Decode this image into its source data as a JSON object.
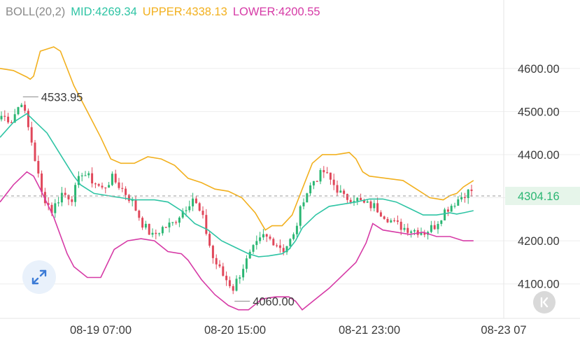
{
  "legend": {
    "label": "BOLL(20,2)",
    "mid": "MID:4269.34",
    "upper": "UPPER:4338.13",
    "lower": "LOWER:4200.55"
  },
  "colors": {
    "mid": "#2ec4a4",
    "upper": "#f2b01e",
    "lower": "#d63aa6",
    "up": "#2bb673",
    "down": "#e0475a",
    "axis_text": "#3b3b3b",
    "grid": "#eeeeee",
    "price_tag_bg": "#e6f5ea",
    "price_tag_text": "#2bb673"
  },
  "icons": {
    "expand": "expand-arrows-icon",
    "back": "chevron-back-icon"
  },
  "chart_data": {
    "type": "candlestick",
    "y_ticks": [
      "4600.00",
      "4500.00",
      "4400.00",
      "4300.00",
      "4200.00",
      "4100.00"
    ],
    "y_tick_values": [
      4600,
      4500,
      4400,
      4300,
      4200,
      4100
    ],
    "ylim": [
      4020,
      4710
    ],
    "x_ticks": [
      "08-19 07:00",
      "08-20 15:00",
      "08-21 23:00",
      "08-23 07"
    ],
    "x_tick_index": [
      30,
      70,
      110,
      150
    ],
    "x_count": 150,
    "current_price": 4304.16,
    "current_price_label": "4304.16",
    "high_marker": {
      "label": "4533.95",
      "index": 6,
      "value": 4533.95
    },
    "low_marker": {
      "label": "4060.00",
      "index": 69,
      "value": 4060.0
    },
    "series": {
      "upper": [
        [
          0,
          4600
        ],
        [
          4,
          4595
        ],
        [
          8,
          4580
        ],
        [
          9,
          4575
        ],
        [
          10,
          4582
        ],
        [
          12,
          4640
        ],
        [
          16,
          4650
        ],
        [
          18,
          4640
        ],
        [
          22,
          4560
        ],
        [
          26,
          4500
        ],
        [
          30,
          4440
        ],
        [
          33,
          4390
        ],
        [
          36,
          4380
        ],
        [
          40,
          4380
        ],
        [
          44,
          4395
        ],
        [
          48,
          4390
        ],
        [
          52,
          4375
        ],
        [
          56,
          4345
        ],
        [
          60,
          4335
        ],
        [
          64,
          4320
        ],
        [
          68,
          4315
        ],
        [
          72,
          4300
        ],
        [
          76,
          4265
        ],
        [
          79,
          4225
        ],
        [
          81,
          4235
        ],
        [
          84,
          4235
        ],
        [
          87,
          4260
        ],
        [
          90,
          4320
        ],
        [
          93,
          4380
        ],
        [
          96,
          4400
        ],
        [
          100,
          4400
        ],
        [
          104,
          4405
        ],
        [
          106,
          4390
        ],
        [
          108,
          4360
        ],
        [
          110,
          4350
        ],
        [
          115,
          4345
        ],
        [
          120,
          4340
        ],
        [
          124,
          4320
        ],
        [
          128,
          4300
        ],
        [
          132,
          4295
        ],
        [
          134,
          4305
        ],
        [
          136,
          4310
        ],
        [
          138,
          4325
        ],
        [
          141,
          4340
        ]
      ],
      "mid": [
        [
          0,
          4440
        ],
        [
          4,
          4475
        ],
        [
          8,
          4495
        ],
        [
          10,
          4480
        ],
        [
          14,
          4450
        ],
        [
          18,
          4400
        ],
        [
          22,
          4350
        ],
        [
          24,
          4330
        ],
        [
          28,
          4310
        ],
        [
          32,
          4305
        ],
        [
          36,
          4300
        ],
        [
          40,
          4295
        ],
        [
          46,
          4295
        ],
        [
          50,
          4290
        ],
        [
          54,
          4270
        ],
        [
          58,
          4240
        ],
        [
          62,
          4225
        ],
        [
          66,
          4200
        ],
        [
          70,
          4185
        ],
        [
          74,
          4170
        ],
        [
          77,
          4163
        ],
        [
          80,
          4165
        ],
        [
          84,
          4170
        ],
        [
          86,
          4180
        ],
        [
          88,
          4200
        ],
        [
          90,
          4230
        ],
        [
          94,
          4260
        ],
        [
          98,
          4280
        ],
        [
          102,
          4285
        ],
        [
          106,
          4290
        ],
        [
          110,
          4297
        ],
        [
          114,
          4297
        ],
        [
          118,
          4290
        ],
        [
          122,
          4275
        ],
        [
          126,
          4260
        ],
        [
          130,
          4260
        ],
        [
          134,
          4265
        ],
        [
          136,
          4262
        ],
        [
          138,
          4265
        ],
        [
          141,
          4270
        ]
      ],
      "lower": [
        [
          0,
          4290
        ],
        [
          4,
          4330
        ],
        [
          8,
          4360
        ],
        [
          10,
          4350
        ],
        [
          12,
          4320
        ],
        [
          16,
          4255
        ],
        [
          20,
          4170
        ],
        [
          22,
          4140
        ],
        [
          26,
          4115
        ],
        [
          30,
          4115
        ],
        [
          34,
          4180
        ],
        [
          38,
          4200
        ],
        [
          42,
          4205
        ],
        [
          46,
          4200
        ],
        [
          50,
          4175
        ],
        [
          54,
          4170
        ],
        [
          56,
          4155
        ],
        [
          60,
          4110
        ],
        [
          64,
          4075
        ],
        [
          68,
          4050
        ],
        [
          71,
          4040
        ],
        [
          74,
          4040
        ],
        [
          78,
          4065
        ],
        [
          82,
          4070
        ],
        [
          86,
          4070
        ],
        [
          88,
          4060
        ],
        [
          90,
          4040
        ],
        [
          94,
          4065
        ],
        [
          98,
          4090
        ],
        [
          102,
          4120
        ],
        [
          106,
          4150
        ],
        [
          109,
          4195
        ],
        [
          111,
          4240
        ],
        [
          114,
          4225
        ],
        [
          118,
          4220
        ],
        [
          122,
          4215
        ],
        [
          126,
          4220
        ],
        [
          130,
          4210
        ],
        [
          134,
          4210
        ],
        [
          138,
          4200
        ],
        [
          141,
          4200
        ]
      ]
    },
    "segments": [
      [
        0,
        4490
      ],
      [
        3,
        4480
      ],
      [
        6,
        4525
      ],
      [
        9,
        4430
      ],
      [
        12,
        4310
      ],
      [
        15,
        4270
      ],
      [
        18,
        4310
      ],
      [
        21,
        4300
      ],
      [
        24,
        4360
      ],
      [
        27,
        4340
      ],
      [
        30,
        4320
      ],
      [
        33,
        4345
      ],
      [
        36,
        4320
      ],
      [
        39,
        4290
      ],
      [
        42,
        4240
      ],
      [
        45,
        4210
      ],
      [
        48,
        4230
      ],
      [
        51,
        4240
      ],
      [
        54,
        4270
      ],
      [
        57,
        4300
      ],
      [
        60,
        4250
      ],
      [
        63,
        4160
      ],
      [
        66,
        4120
      ],
      [
        69,
        4090
      ],
      [
        72,
        4140
      ],
      [
        75,
        4180
      ],
      [
        78,
        4210
      ],
      [
        81,
        4200
      ],
      [
        84,
        4180
      ],
      [
        87,
        4210
      ],
      [
        90,
        4300
      ],
      [
        93,
        4340
      ],
      [
        96,
        4360
      ],
      [
        99,
        4330
      ],
      [
        102,
        4300
      ],
      [
        105,
        4300
      ],
      [
        108,
        4285
      ],
      [
        111,
        4280
      ],
      [
        114,
        4260
      ],
      [
        117,
        4240
      ],
      [
        120,
        4230
      ],
      [
        123,
        4225
      ],
      [
        126,
        4220
      ],
      [
        129,
        4235
      ],
      [
        132,
        4270
      ],
      [
        135,
        4290
      ],
      [
        138,
        4310
      ],
      [
        141,
        4320
      ]
    ]
  }
}
